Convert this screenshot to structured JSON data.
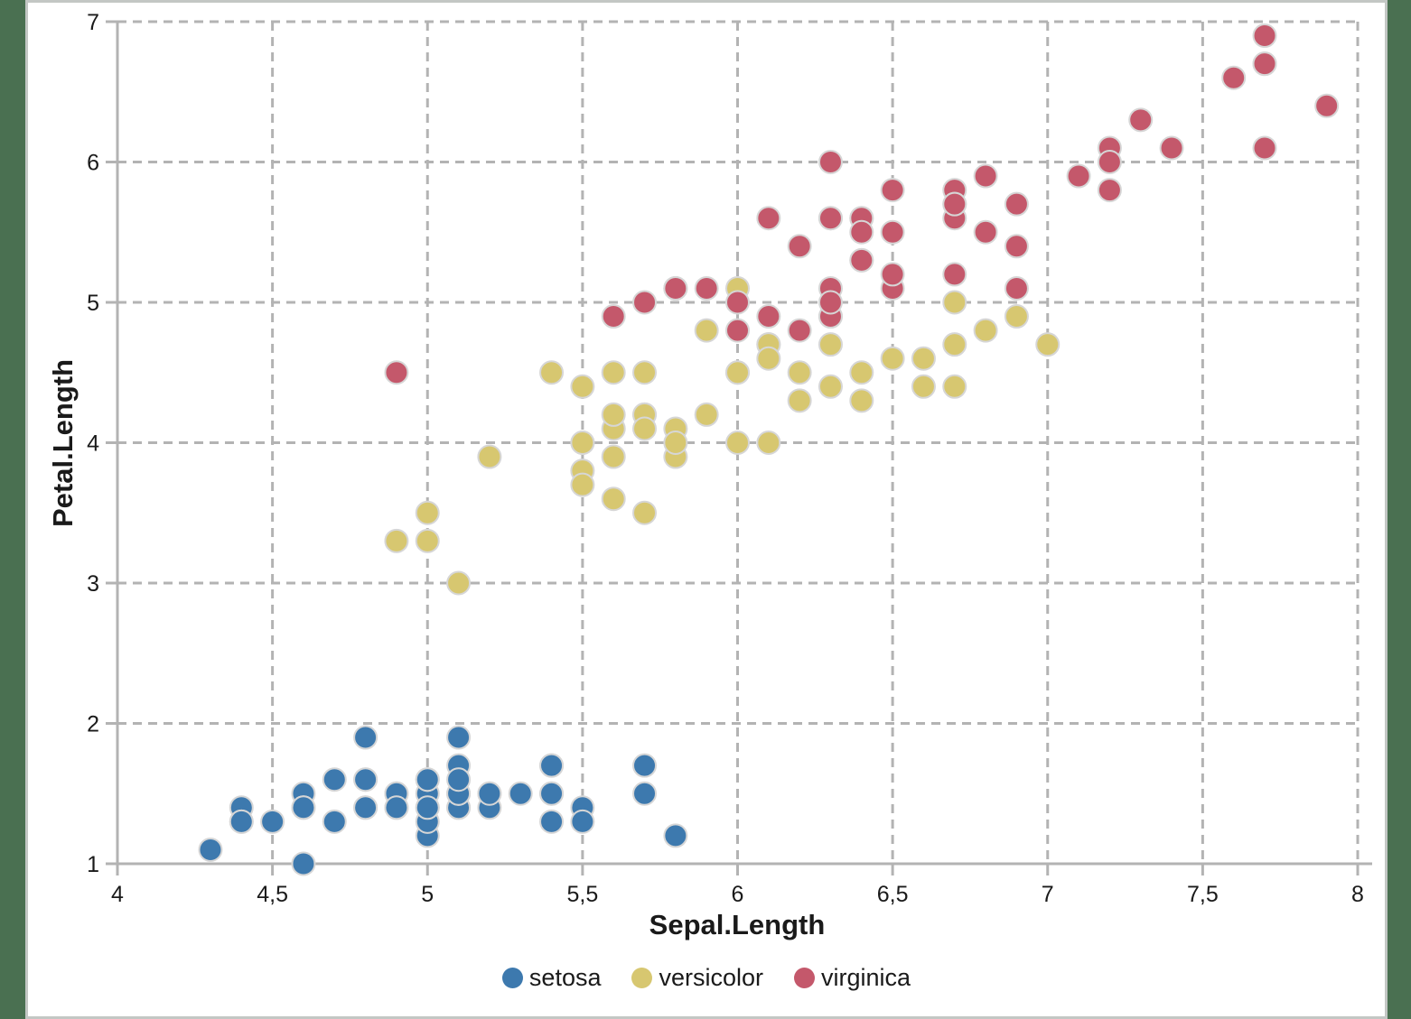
{
  "frame": {
    "side_background": "#4a7051",
    "canvas_background": "#ffffff",
    "canvas_border": "#c3c7c4"
  },
  "style": {
    "grid_color": "#b3b3b3",
    "axis_color": "#b3b3b3",
    "marker_outline": "#d6d6d6",
    "text_color": "#1a1a1a"
  },
  "legend": {
    "items": [
      {
        "label": "setosa",
        "color": "#3d79ae"
      },
      {
        "label": "versicolor",
        "color": "#d7c770"
      },
      {
        "label": "virginica",
        "color": "#c4586b"
      }
    ]
  },
  "chart_data": {
    "type": "scatter",
    "title": "",
    "xlabel": "Sepal.Length",
    "ylabel": "Petal.Length",
    "xlim": [
      4,
      8
    ],
    "ylim": [
      1,
      7
    ],
    "x_ticks": [
      4,
      4.5,
      5,
      5.5,
      6,
      6.5,
      7,
      7.5,
      8
    ],
    "x_tick_labels": [
      "4",
      "4,5",
      "5",
      "5,5",
      "6",
      "6,5",
      "7",
      "7,5",
      "8"
    ],
    "y_ticks": [
      1,
      2,
      3,
      4,
      5,
      6,
      7
    ],
    "y_tick_labels": [
      "1",
      "2",
      "3",
      "4",
      "5",
      "6",
      "7"
    ],
    "grid": "dashed",
    "legend_position": "bottom",
    "series": [
      {
        "name": "setosa",
        "color": "#3d79ae",
        "points": [
          [
            5.1,
            1.4
          ],
          [
            4.9,
            1.4
          ],
          [
            4.7,
            1.3
          ],
          [
            4.6,
            1.5
          ],
          [
            5.0,
            1.4
          ],
          [
            5.4,
            1.7
          ],
          [
            4.6,
            1.4
          ],
          [
            5.0,
            1.5
          ],
          [
            4.4,
            1.4
          ],
          [
            4.9,
            1.5
          ],
          [
            5.4,
            1.5
          ],
          [
            4.8,
            1.6
          ],
          [
            4.8,
            1.4
          ],
          [
            4.3,
            1.1
          ],
          [
            5.8,
            1.2
          ],
          [
            5.7,
            1.5
          ],
          [
            5.4,
            1.3
          ],
          [
            5.1,
            1.4
          ],
          [
            5.7,
            1.7
          ],
          [
            5.1,
            1.5
          ],
          [
            5.4,
            1.7
          ],
          [
            5.1,
            1.5
          ],
          [
            4.6,
            1.0
          ],
          [
            5.1,
            1.7
          ],
          [
            4.8,
            1.9
          ],
          [
            5.0,
            1.6
          ],
          [
            5.0,
            1.6
          ],
          [
            5.2,
            1.5
          ],
          [
            5.2,
            1.4
          ],
          [
            4.7,
            1.6
          ],
          [
            4.8,
            1.6
          ],
          [
            5.4,
            1.5
          ],
          [
            5.2,
            1.5
          ],
          [
            5.5,
            1.4
          ],
          [
            4.9,
            1.5
          ],
          [
            5.0,
            1.2
          ],
          [
            5.5,
            1.3
          ],
          [
            4.9,
            1.4
          ],
          [
            4.4,
            1.3
          ],
          [
            5.1,
            1.5
          ],
          [
            5.0,
            1.3
          ],
          [
            4.5,
            1.3
          ],
          [
            4.4,
            1.3
          ],
          [
            5.0,
            1.6
          ],
          [
            5.1,
            1.9
          ],
          [
            4.8,
            1.4
          ],
          [
            5.1,
            1.6
          ],
          [
            4.6,
            1.4
          ],
          [
            5.3,
            1.5
          ],
          [
            5.0,
            1.4
          ]
        ]
      },
      {
        "name": "versicolor",
        "color": "#d7c770",
        "points": [
          [
            7.0,
            4.7
          ],
          [
            6.4,
            4.5
          ],
          [
            6.9,
            4.9
          ],
          [
            5.5,
            4.0
          ],
          [
            6.5,
            4.6
          ],
          [
            5.7,
            4.5
          ],
          [
            6.3,
            4.7
          ],
          [
            4.9,
            3.3
          ],
          [
            6.6,
            4.6
          ],
          [
            5.2,
            3.9
          ],
          [
            5.0,
            3.5
          ],
          [
            5.9,
            4.2
          ],
          [
            6.0,
            4.0
          ],
          [
            6.1,
            4.7
          ],
          [
            5.6,
            3.6
          ],
          [
            6.7,
            4.4
          ],
          [
            5.6,
            4.5
          ],
          [
            5.8,
            4.1
          ],
          [
            6.2,
            4.5
          ],
          [
            5.6,
            3.9
          ],
          [
            5.9,
            4.8
          ],
          [
            6.1,
            4.0
          ],
          [
            6.3,
            4.9
          ],
          [
            6.1,
            4.7
          ],
          [
            6.4,
            4.3
          ],
          [
            6.6,
            4.4
          ],
          [
            6.8,
            4.8
          ],
          [
            6.7,
            5.0
          ],
          [
            6.0,
            4.5
          ],
          [
            5.7,
            3.5
          ],
          [
            5.5,
            3.8
          ],
          [
            5.5,
            3.7
          ],
          [
            5.8,
            3.9
          ],
          [
            6.0,
            5.1
          ],
          [
            5.4,
            4.5
          ],
          [
            6.0,
            4.5
          ],
          [
            6.7,
            4.7
          ],
          [
            6.3,
            4.4
          ],
          [
            5.6,
            4.1
          ],
          [
            5.5,
            4.0
          ],
          [
            5.5,
            4.4
          ],
          [
            6.1,
            4.6
          ],
          [
            5.8,
            4.0
          ],
          [
            5.0,
            3.3
          ],
          [
            5.6,
            4.2
          ],
          [
            5.7,
            4.2
          ],
          [
            5.7,
            4.2
          ],
          [
            6.2,
            4.3
          ],
          [
            5.1,
            3.0
          ],
          [
            5.7,
            4.1
          ]
        ]
      },
      {
        "name": "virginica",
        "color": "#c4586b",
        "points": [
          [
            6.3,
            6.0
          ],
          [
            5.8,
            5.1
          ],
          [
            7.1,
            5.9
          ],
          [
            6.3,
            5.6
          ],
          [
            6.5,
            5.8
          ],
          [
            7.6,
            6.6
          ],
          [
            4.9,
            4.5
          ],
          [
            7.3,
            6.3
          ],
          [
            6.7,
            5.8
          ],
          [
            7.2,
            6.1
          ],
          [
            6.5,
            5.1
          ],
          [
            6.4,
            5.3
          ],
          [
            6.8,
            5.5
          ],
          [
            5.7,
            5.0
          ],
          [
            5.8,
            5.1
          ],
          [
            6.4,
            5.3
          ],
          [
            6.5,
            5.5
          ],
          [
            7.7,
            6.7
          ],
          [
            7.7,
            6.9
          ],
          [
            6.0,
            5.0
          ],
          [
            6.9,
            5.7
          ],
          [
            5.6,
            4.9
          ],
          [
            7.7,
            6.7
          ],
          [
            6.3,
            4.9
          ],
          [
            6.7,
            5.7
          ],
          [
            7.2,
            6.0
          ],
          [
            6.2,
            4.8
          ],
          [
            6.1,
            4.9
          ],
          [
            6.4,
            5.6
          ],
          [
            7.2,
            5.8
          ],
          [
            7.4,
            6.1
          ],
          [
            7.9,
            6.4
          ],
          [
            6.4,
            5.6
          ],
          [
            6.3,
            5.1
          ],
          [
            6.1,
            5.6
          ],
          [
            7.7,
            6.1
          ],
          [
            6.3,
            5.6
          ],
          [
            6.4,
            5.5
          ],
          [
            6.0,
            4.8
          ],
          [
            6.9,
            5.4
          ],
          [
            6.7,
            5.6
          ],
          [
            6.9,
            5.1
          ],
          [
            5.8,
            5.1
          ],
          [
            6.8,
            5.9
          ],
          [
            6.7,
            5.7
          ],
          [
            6.7,
            5.2
          ],
          [
            6.3,
            5.0
          ],
          [
            6.5,
            5.2
          ],
          [
            6.2,
            5.4
          ],
          [
            5.9,
            5.1
          ]
        ]
      }
    ]
  }
}
